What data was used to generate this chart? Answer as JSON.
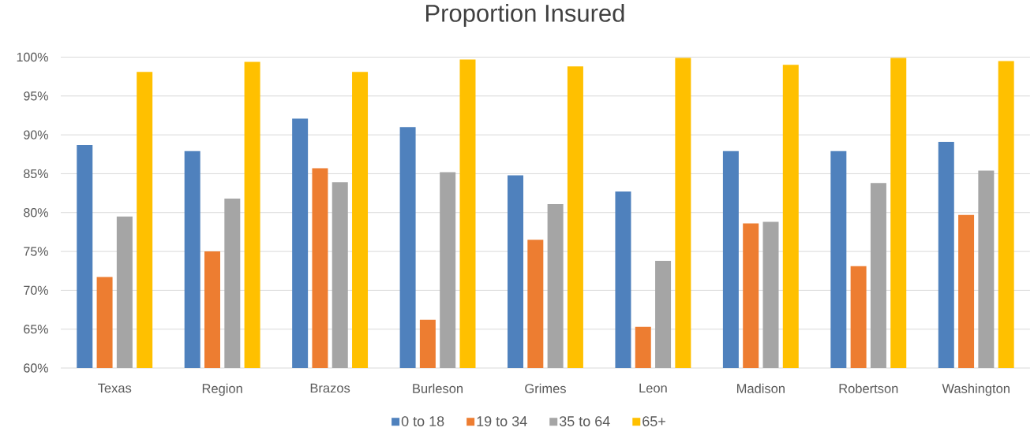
{
  "chart_data": {
    "type": "bar",
    "title": "Proportion Insured",
    "categories": [
      "Texas",
      "Region",
      "Brazos",
      "Burleson",
      "Grimes",
      "Leon",
      "Madison",
      "Robertson",
      "Washington"
    ],
    "series": [
      {
        "name": "0 to 18",
        "color": "#4f81bd",
        "values": [
          88.7,
          87.9,
          92.1,
          91.0,
          84.8,
          82.7,
          87.9,
          87.9,
          89.1
        ]
      },
      {
        "name": "19 to 34",
        "color": "#ed7d31",
        "values": [
          71.7,
          75.0,
          85.7,
          66.2,
          76.5,
          65.3,
          78.6,
          73.1,
          79.7
        ]
      },
      {
        "name": "35 to 64",
        "color": "#a5a5a5",
        "values": [
          79.5,
          81.8,
          83.9,
          85.2,
          81.1,
          73.8,
          78.8,
          83.8,
          85.4
        ]
      },
      {
        "name": "65+",
        "color": "#ffc000",
        "values": [
          98.1,
          99.4,
          98.1,
          99.7,
          98.8,
          99.9,
          99.0,
          99.9,
          99.5
        ]
      }
    ],
    "ylim": [
      60,
      100
    ],
    "yticks": [
      {
        "value": 60,
        "label": "60%"
      },
      {
        "value": 65,
        "label": "65%"
      },
      {
        "value": 70,
        "label": "70%"
      },
      {
        "value": 75,
        "label": "75%"
      },
      {
        "value": 80,
        "label": "80%"
      },
      {
        "value": 85,
        "label": "85%"
      },
      {
        "value": 90,
        "label": "90%"
      },
      {
        "value": 95,
        "label": "95%"
      },
      {
        "value": 100,
        "label": "100%"
      }
    ],
    "grid": "y",
    "legend": "bottom"
  }
}
